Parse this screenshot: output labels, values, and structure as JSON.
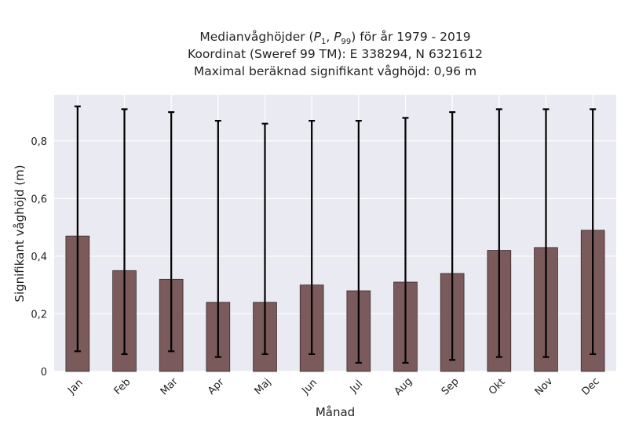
{
  "chart_data": {
    "type": "bar",
    "title": {
      "line1_prefix": "Medianvåghöjder (",
      "line1_p1": "P",
      "line1_p1_sub": "1",
      "line1_sep": ", ",
      "line1_p99": "P",
      "line1_p99_sub": "99",
      "line1_suffix": ") för år 1979 - 2019",
      "line2": "Koordinat (Sweref 99 TM): E 338294, N 6321612",
      "line3": "Maximal beräknad signifikant våghöjd: 0,96 m"
    },
    "xlabel": "Månad",
    "ylabel": "Signifikant våghöjd (m)",
    "ylim": [
      0,
      0.96
    ],
    "yticks": [
      {
        "value": 0,
        "label": "0"
      },
      {
        "value": 0.2,
        "label": "0,2"
      },
      {
        "value": 0.4,
        "label": "0,4"
      },
      {
        "value": 0.6,
        "label": "0,6"
      },
      {
        "value": 0.8,
        "label": "0,8"
      }
    ],
    "grid": true,
    "categories": [
      "Jan",
      "Feb",
      "Mar",
      "Apr",
      "Maj",
      "Jun",
      "Jul",
      "Aug",
      "Sep",
      "Okt",
      "Nov",
      "Dec"
    ],
    "values": [
      0.47,
      0.35,
      0.32,
      0.24,
      0.24,
      0.3,
      0.28,
      0.31,
      0.34,
      0.42,
      0.43,
      0.49
    ],
    "p1": [
      0.07,
      0.06,
      0.07,
      0.05,
      0.06,
      0.06,
      0.03,
      0.03,
      0.04,
      0.05,
      0.05,
      0.06
    ],
    "p99": [
      0.92,
      0.91,
      0.9,
      0.87,
      0.86,
      0.87,
      0.87,
      0.88,
      0.9,
      0.91,
      0.91,
      0.91
    ],
    "colors": {
      "bar": "#7a5a5a",
      "bar_edge": "#3a2a2a",
      "plot_bg": "#eaeaf2",
      "grid": "#ffffff",
      "errorbar": "#000000"
    }
  }
}
